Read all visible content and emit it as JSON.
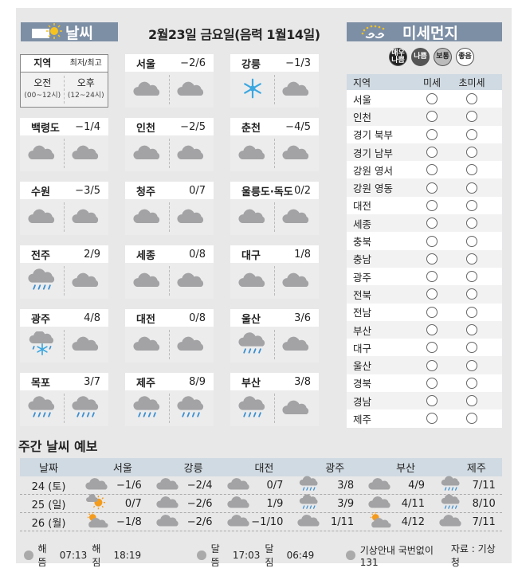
{
  "weather_header": {
    "title": "날씨",
    "icon": "sun-icon"
  },
  "date": "2월23일 금요일(음력 1월14일)",
  "legend": {
    "region": "지역",
    "minmax": "최저/최고",
    "am": "오전",
    "am_sub": "(00~12시)",
    "pm": "오후",
    "pm_sub": "(12~24시)"
  },
  "cells": [
    {
      "name": "서울",
      "temp": "−2/6",
      "am": "cloud",
      "pm": "cloud"
    },
    {
      "name": "강릉",
      "temp": "−1/3",
      "am": "snow",
      "pm": "cloud"
    },
    {
      "name": "백령도",
      "temp": "−1/4",
      "am": "cloud",
      "pm": "cloud"
    },
    {
      "name": "인천",
      "temp": "−2/5",
      "am": "cloud",
      "pm": "cloud"
    },
    {
      "name": "춘천",
      "temp": "−4/5",
      "am": "cloud",
      "pm": "cloud"
    },
    {
      "name": "수원",
      "temp": "−3/5",
      "am": "cloud",
      "pm": "cloud"
    },
    {
      "name": "청주",
      "temp": "0/7",
      "am": "cloud",
      "pm": "cloud"
    },
    {
      "name": "울릉도·독도",
      "temp": "0/2",
      "am": "cloud",
      "pm": "cloud"
    },
    {
      "name": "전주",
      "temp": "2/9",
      "am": "rain",
      "pm": "cloud"
    },
    {
      "name": "세종",
      "temp": "0/8",
      "am": "cloud",
      "pm": "cloud"
    },
    {
      "name": "대구",
      "temp": "1/8",
      "am": "cloud",
      "pm": "cloud"
    },
    {
      "name": "광주",
      "temp": "4/8",
      "am": "rain-snow",
      "pm": "cloud"
    },
    {
      "name": "대전",
      "temp": "0/8",
      "am": "cloud",
      "pm": "cloud"
    },
    {
      "name": "울산",
      "temp": "3/6",
      "am": "rain",
      "pm": "cloud"
    },
    {
      "name": "목포",
      "temp": "3/7",
      "am": "rain",
      "pm": "rain"
    },
    {
      "name": "제주",
      "temp": "8/9",
      "am": "rain",
      "pm": "rain"
    },
    {
      "name": "부산",
      "temp": "3/8",
      "am": "rain",
      "pm": "cloud"
    }
  ],
  "dust": {
    "title": "미세먼지",
    "levels": [
      {
        "label": "매우 나쁨",
        "color": "#222222"
      },
      {
        "label": "나쁨",
        "color": "#555555"
      },
      {
        "label": "보통",
        "color": "#bbbbbb"
      },
      {
        "label": "좋음",
        "color": "#ffffff"
      }
    ],
    "headers": [
      "지역",
      "미세",
      "초미세"
    ],
    "regions": [
      "서울",
      "인천",
      "경기 북부",
      "경기 남부",
      "강원 영서",
      "강원 영동",
      "대전",
      "세종",
      "충북",
      "충남",
      "광주",
      "전북",
      "전남",
      "부산",
      "대구",
      "울산",
      "경북",
      "경남",
      "제주"
    ]
  },
  "weekly": {
    "title": "주간 날씨 예보",
    "headers": [
      "날짜",
      "서울",
      "강릉",
      "대전",
      "광주",
      "부산",
      "제주"
    ],
    "rows": [
      {
        "date": "24 (토)",
        "cells": [
          [
            "cloud",
            "−1/6"
          ],
          [
            "cloud",
            "−2/4"
          ],
          [
            "cloud",
            "0/7"
          ],
          [
            "rain",
            "3/8"
          ],
          [
            "cloud",
            "4/9"
          ],
          [
            "rain",
            "7/11"
          ]
        ]
      },
      {
        "date": "25 (일)",
        "cells": [
          [
            "cloud-sun",
            "0/7"
          ],
          [
            "cloud",
            "−2/6"
          ],
          [
            "cloud",
            "1/9"
          ],
          [
            "rain",
            "3/9"
          ],
          [
            "cloud",
            "4/11"
          ],
          [
            "rain",
            "8/10"
          ]
        ]
      },
      {
        "date": "26 (월)",
        "cells": [
          [
            "sun-cloud",
            "−1/8"
          ],
          [
            "cloud",
            "−2/6"
          ],
          [
            "cloud",
            "−1/10"
          ],
          [
            "cloud",
            "1/11"
          ],
          [
            "sun-cloud",
            "4/12"
          ],
          [
            "cloud",
            "7/11"
          ]
        ]
      }
    ]
  },
  "footer": {
    "sunrise_label": "해뜸",
    "sunrise": "07:13",
    "sunset_label": "해짐",
    "sunset": "18:19",
    "moonrise_label": "달뜸",
    "moonrise": "17:03",
    "moonset_label": "달짐",
    "moonset": "06:49",
    "phone": "기상안내 국번없이 131",
    "source": "자료 : 기상청"
  }
}
